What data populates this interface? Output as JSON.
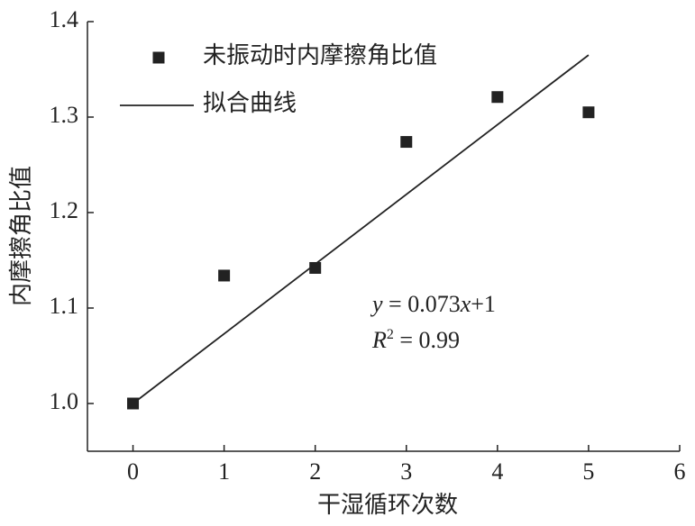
{
  "chart_data": {
    "type": "scatter",
    "xlabel": "干湿循环次数",
    "ylabel": "内摩擦角比值",
    "xlim": [
      -0.5,
      6
    ],
    "ylim": [
      0.95,
      1.4
    ],
    "xticks": [
      0,
      1,
      2,
      3,
      4,
      5,
      6
    ],
    "yticks": [
      {
        "value": 1,
        "label": "1.0"
      },
      1.1,
      1.2,
      1.3,
      1.4
    ],
    "series": [
      {
        "name": "未振动时内摩擦角比值",
        "color": "#222222",
        "marker": "square",
        "x": [
          0,
          1,
          2,
          3,
          4,
          5
        ],
        "values": [
          1.0,
          1.134,
          1.142,
          1.274,
          1.321,
          1.305
        ]
      },
      {
        "name": "拟合曲线",
        "color": "#222222",
        "kind": "line",
        "x": [
          0,
          5
        ],
        "values": [
          1.0,
          1.365
        ]
      }
    ],
    "annotations": [
      {
        "parts": [
          "y",
          " = 0.073",
          "x",
          "+1"
        ]
      },
      {
        "parts": [
          "R",
          "2",
          " = 0.99"
        ]
      }
    ]
  }
}
